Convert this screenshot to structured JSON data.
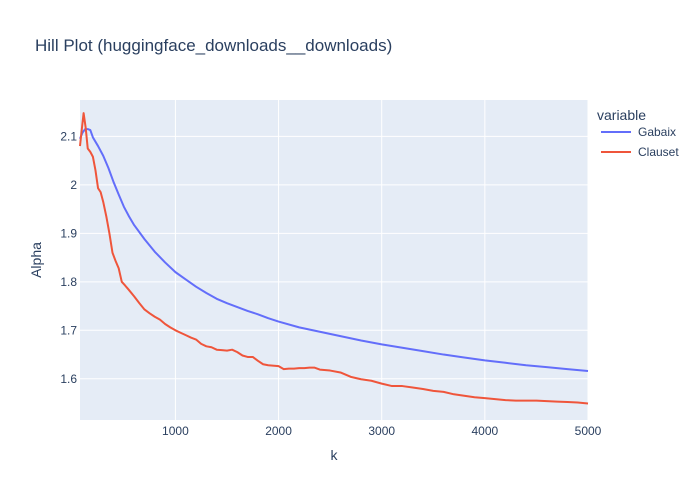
{
  "chart_data": {
    "type": "line",
    "title": "Hill Plot (huggingface_downloads__downloads)",
    "xlabel": "k",
    "ylabel": "Alpha",
    "xlim": [
      75,
      5000
    ],
    "ylim": [
      1.515,
      2.175
    ],
    "x_ticks": [
      1000,
      2000,
      3000,
      4000,
      5000
    ],
    "x_tick_labels": [
      "1000",
      "2000",
      "3000",
      "4000",
      "5000"
    ],
    "y_ticks": [
      1.6,
      1.7,
      1.8,
      1.9,
      2.0,
      2.1
    ],
    "y_tick_labels": [
      "1.6",
      "1.7",
      "1.8",
      "1.9",
      "2",
      "2.1"
    ],
    "grid": true,
    "legend": {
      "title": "variable",
      "position": "right"
    },
    "colors": {
      "plot_bg": "#e5ecf6",
      "grid": "#ffffff",
      "text": "#2a3f5f"
    },
    "series": [
      {
        "name": "Gabaix",
        "color": "#636efa",
        "x": [
          75,
          100,
          125,
          150,
          175,
          200,
          250,
          300,
          350,
          400,
          450,
          500,
          550,
          600,
          700,
          800,
          900,
          1000,
          1100,
          1200,
          1300,
          1400,
          1500,
          1600,
          1700,
          1800,
          1900,
          2000,
          2200,
          2400,
          2600,
          2800,
          3000,
          3200,
          3400,
          3600,
          3800,
          4000,
          4200,
          4400,
          4600,
          4800,
          5000
        ],
        "y": [
          2.095,
          2.108,
          2.115,
          2.115,
          2.113,
          2.098,
          2.08,
          2.06,
          2.035,
          2.006,
          1.98,
          1.955,
          1.935,
          1.917,
          1.888,
          1.862,
          1.84,
          1.82,
          1.805,
          1.79,
          1.777,
          1.765,
          1.756,
          1.748,
          1.74,
          1.733,
          1.725,
          1.718,
          1.706,
          1.697,
          1.688,
          1.679,
          1.671,
          1.664,
          1.657,
          1.65,
          1.644,
          1.638,
          1.633,
          1.628,
          1.624,
          1.62,
          1.616
        ]
      },
      {
        "name": "Clauset",
        "color": "#ef553b",
        "x": [
          75,
          90,
          110,
          130,
          150,
          175,
          200,
          225,
          250,
          275,
          300,
          330,
          360,
          390,
          420,
          450,
          480,
          510,
          550,
          600,
          650,
          700,
          750,
          800,
          850,
          900,
          950,
          1000,
          1050,
          1100,
          1150,
          1200,
          1250,
          1300,
          1350,
          1400,
          1450,
          1500,
          1550,
          1600,
          1650,
          1700,
          1750,
          1800,
          1850,
          1900,
          2000,
          2050,
          2100,
          2150,
          2200,
          2250,
          2300,
          2350,
          2400,
          2500,
          2600,
          2700,
          2800,
          2900,
          3000,
          3100,
          3200,
          3300,
          3400,
          3500,
          3600,
          3700,
          3800,
          3900,
          4000,
          4100,
          4200,
          4300,
          4400,
          4500,
          4600,
          4700,
          4800,
          4900,
          5000
        ],
        "y": [
          2.08,
          2.11,
          2.148,
          2.118,
          2.075,
          2.068,
          2.058,
          2.03,
          1.993,
          1.985,
          1.965,
          1.935,
          1.9,
          1.86,
          1.843,
          1.828,
          1.8,
          1.793,
          1.783,
          1.77,
          1.756,
          1.743,
          1.735,
          1.728,
          1.722,
          1.713,
          1.706,
          1.7,
          1.695,
          1.69,
          1.685,
          1.681,
          1.672,
          1.667,
          1.665,
          1.66,
          1.659,
          1.658,
          1.66,
          1.655,
          1.648,
          1.645,
          1.645,
          1.637,
          1.63,
          1.628,
          1.626,
          1.62,
          1.621,
          1.621,
          1.622,
          1.622,
          1.623,
          1.623,
          1.619,
          1.617,
          1.613,
          1.604,
          1.599,
          1.596,
          1.59,
          1.585,
          1.585,
          1.582,
          1.579,
          1.575,
          1.573,
          1.568,
          1.565,
          1.562,
          1.56,
          1.558,
          1.556,
          1.555,
          1.555,
          1.555,
          1.554,
          1.553,
          1.552,
          1.551,
          1.549
        ]
      }
    ]
  }
}
